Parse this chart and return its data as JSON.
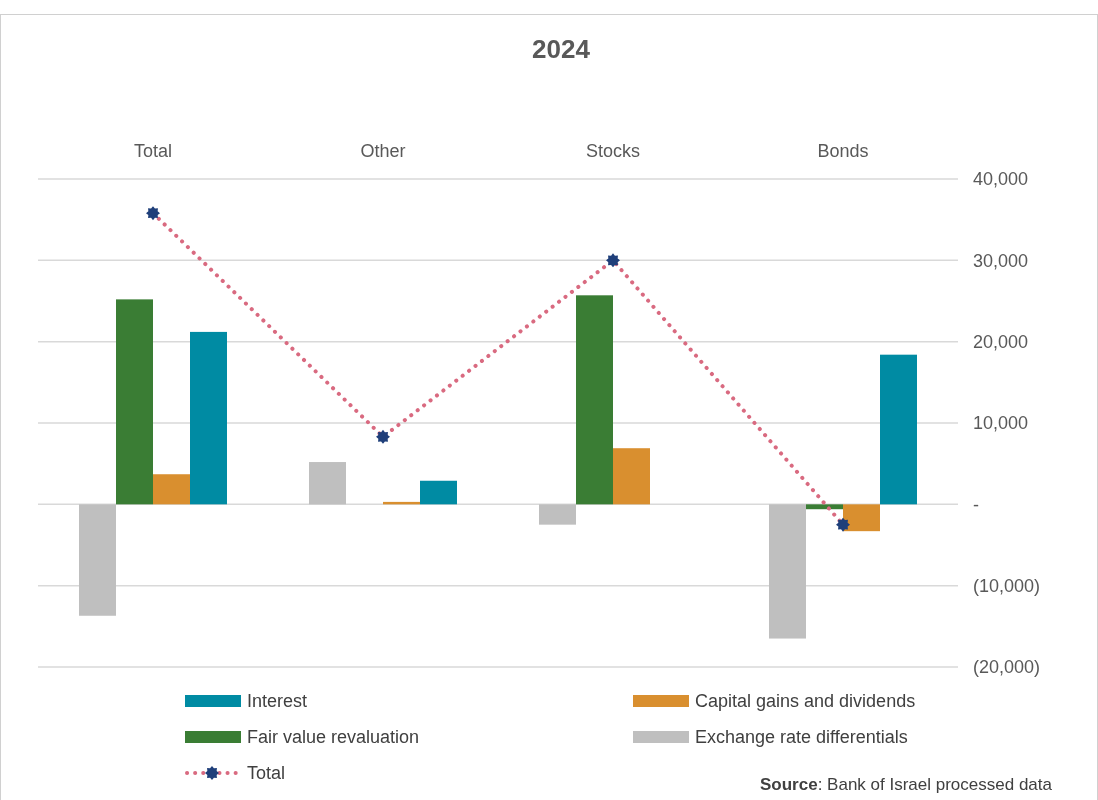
{
  "chart_data": {
    "type": "bar",
    "title": "2024",
    "categories": [
      "Total",
      "Other",
      "Stocks",
      "Bonds"
    ],
    "series": [
      {
        "name": "Exchange rate differentials",
        "color": "#bfbfbf",
        "values": [
          -13700,
          5200,
          -2500,
          -16500
        ]
      },
      {
        "name": "Fair value revaluation",
        "color": "#3a7d34",
        "values": [
          25200,
          0,
          25700,
          -600
        ]
      },
      {
        "name": "Capital gains and dividends",
        "color": "#d98f2f",
        "values": [
          3700,
          300,
          6900,
          -3300
        ]
      },
      {
        "name": "Interest",
        "color": "#008ba3",
        "values": [
          21200,
          2900,
          0,
          18400
        ]
      },
      {
        "name": "Total",
        "type": "line",
        "color": "#d96a80",
        "values": [
          35800,
          8300,
          30000,
          -2500
        ],
        "marker": "star",
        "line_style": "dotted"
      }
    ],
    "ylim": [
      -20000,
      40000
    ],
    "yticks": [
      {
        "value": -20000,
        "label": "(20,000)"
      },
      {
        "value": -10000,
        "label": "(10,000)"
      },
      {
        "value": 0,
        "label": "-"
      },
      {
        "value": 10000,
        "label": "10,000"
      },
      {
        "value": 20000,
        "label": "20,000"
      },
      {
        "value": 30000,
        "label": "30,000"
      },
      {
        "value": 40000,
        "label": "40,000"
      }
    ],
    "grid": "y",
    "legend": "bottom",
    "annotations": [
      "Source: Bank of Israel processed data"
    ]
  }
}
